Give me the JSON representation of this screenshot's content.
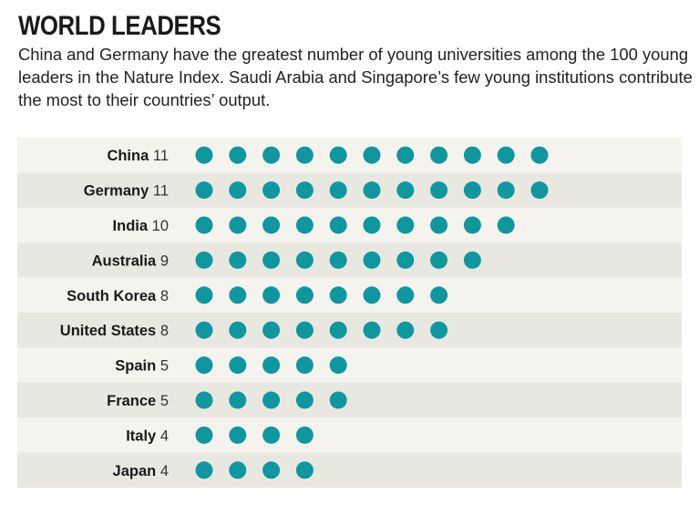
{
  "title": "WORLD LEADERS",
  "subtitle": "China and Germany have the greatest number of young universities among the 100 young leaders in the Nature Index. Saudi Arabia and Singapore’s few young institutions contribute the most to their countries’ output.",
  "colors": {
    "dot": "#0f979f",
    "row_light": "#f4f3ee",
    "row_dark": "#e8e8e0"
  },
  "chart_data": {
    "type": "dot",
    "categories": [
      "China",
      "Germany",
      "India",
      "Australia",
      "South Korea",
      "United States",
      "Spain",
      "France",
      "Italy",
      "Japan"
    ],
    "values": [
      11,
      11,
      10,
      9,
      8,
      8,
      5,
      5,
      4,
      4
    ]
  }
}
